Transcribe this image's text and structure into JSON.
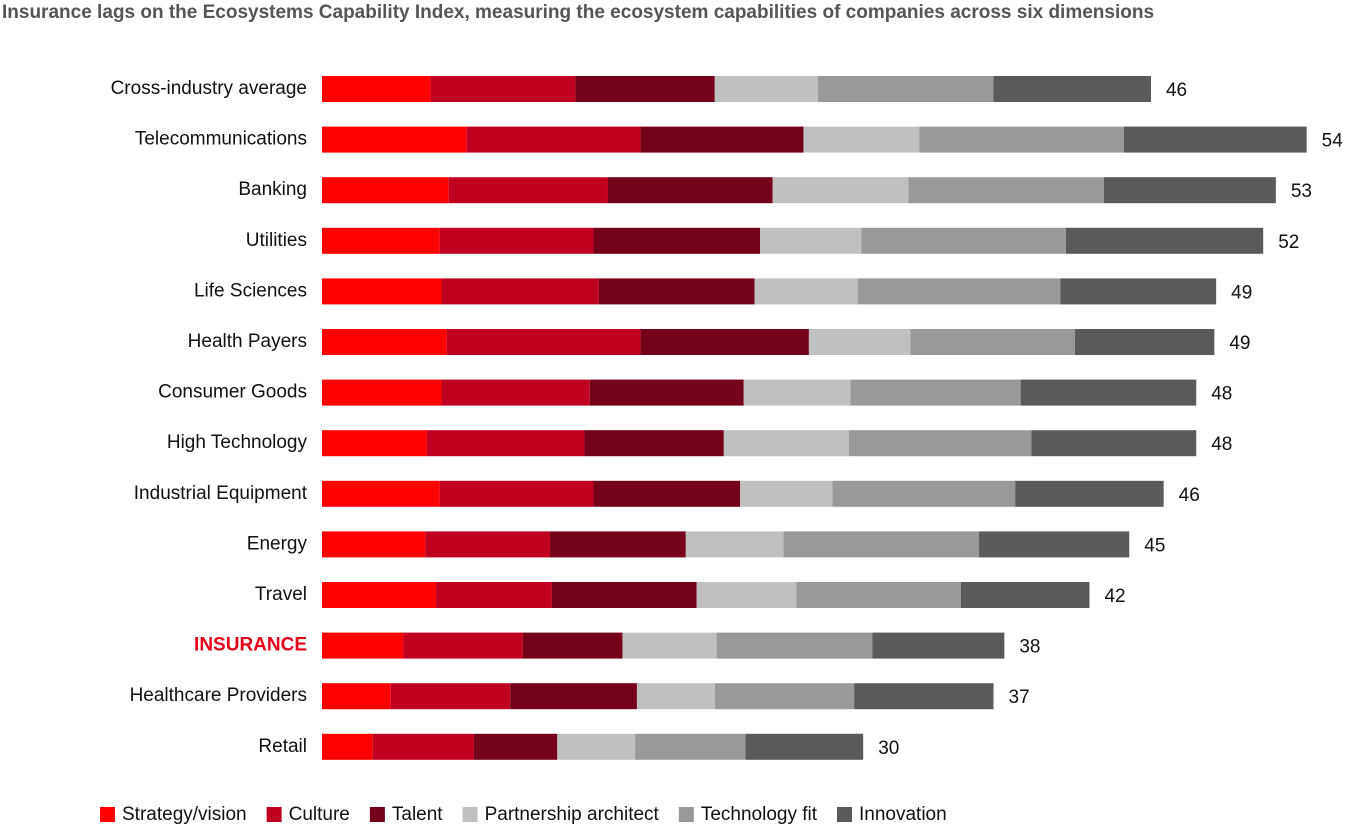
{
  "chart_data": {
    "type": "stacked-bar",
    "orientation": "horizontal",
    "title": "Insurance lags on the Ecosystems Capability Index, measuring the ecosystem capabilities of companies across six dimensions",
    "categories": [
      "Cross-industry average",
      "Telecommunications",
      "Banking",
      "Utilities",
      "Life Sciences",
      "Health Payers",
      "Consumer Goods",
      "High Technology",
      "Industrial Equipment",
      "Energy",
      "Travel",
      "INSURANCE",
      "Healthcare Providers",
      "Retail"
    ],
    "highlight_index": 11,
    "highlight_color": "#e4001b",
    "series": [
      {
        "name": "Strategy/vision",
        "color": "#ff0000",
        "values": [
          6.0,
          8.0,
          7.0,
          6.5,
          6.6,
          6.9,
          6.6,
          5.8,
          6.5,
          5.7,
          6.3,
          4.5,
          3.8,
          2.8
        ]
      },
      {
        "name": "Culture",
        "color": "#c00020",
        "values": [
          8.0,
          9.6,
          8.8,
          8.5,
          8.7,
          10.7,
          8.2,
          8.7,
          8.5,
          6.9,
          6.4,
          6.6,
          6.6,
          5.6
        ]
      },
      {
        "name": "Talent",
        "color": "#75001a",
        "values": [
          7.7,
          9.0,
          9.1,
          9.2,
          8.6,
          9.3,
          8.5,
          7.7,
          8.1,
          7.5,
          8.0,
          5.5,
          7.0,
          4.6
        ]
      },
      {
        "name": "Partnership architect",
        "color": "#c0c0c0",
        "values": [
          5.7,
          6.4,
          7.5,
          5.6,
          5.7,
          5.6,
          5.9,
          6.9,
          5.1,
          5.4,
          5.5,
          5.2,
          4.3,
          4.3
        ]
      },
      {
        "name": "Technology fit",
        "color": "#999999",
        "values": [
          9.7,
          11.3,
          10.8,
          11.3,
          11.2,
          9.1,
          9.4,
          10.1,
          10.1,
          10.8,
          9.1,
          8.6,
          7.7,
          6.1
        ]
      },
      {
        "name": "Innovation",
        "color": "#5a5a5a",
        "values": [
          8.7,
          10.1,
          9.5,
          10.9,
          8.6,
          7.7,
          9.7,
          9.1,
          8.2,
          8.3,
          7.1,
          7.3,
          7.7,
          6.5
        ]
      }
    ],
    "totals": [
      46,
      54,
      53,
      52,
      49,
      49,
      48,
      48,
      46,
      45,
      42,
      38,
      37,
      30
    ]
  }
}
